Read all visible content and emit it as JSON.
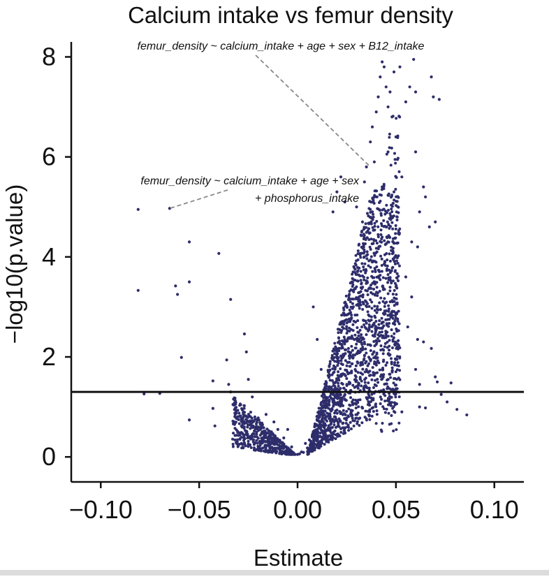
{
  "chart_data": {
    "type": "scatter",
    "title": "Calcium intake vs femur density",
    "xlabel": "Estimate",
    "ylabel": "−log10(p.value)",
    "xlim": [
      -0.115,
      0.115
    ],
    "ylim": [
      -0.5,
      8.3
    ],
    "x_ticks": [
      -0.1,
      -0.05,
      0.0,
      0.05,
      0.1
    ],
    "x_tick_labels": [
      "−0.10",
      "−0.05",
      "0.00",
      "0.05",
      "0.10"
    ],
    "y_ticks": [
      0,
      2,
      4,
      6,
      8
    ],
    "y_tick_labels": [
      "0",
      "2",
      "4",
      "6",
      "8"
    ],
    "hline": 1.3,
    "point_color": "#2e2d6b",
    "grid": false,
    "annotations": [
      {
        "text_lines": [
          "femur_density ~ calcium_intake + age + sex + B12_intake"
        ],
        "target": [
          0.037,
          5.8
        ]
      },
      {
        "text_lines": [
          "femur_density ~ calcium_intake + age + sex",
          "+ phosphorus_intake"
        ],
        "target": [
          -0.065,
          4.97
        ]
      }
    ],
    "series": [
      {
        "points": [
          [
            -0.081,
            4.95
          ],
          [
            -0.065,
            4.97
          ],
          [
            -0.081,
            3.33
          ],
          [
            -0.055,
            4.3
          ],
          [
            -0.055,
            3.5
          ],
          [
            -0.062,
            3.42
          ],
          [
            -0.061,
            3.25
          ],
          [
            -0.04,
            4.07
          ],
          [
            -0.034,
            3.15
          ],
          [
            -0.027,
            2.46
          ],
          [
            -0.059,
            1.99
          ],
          [
            -0.036,
            1.94
          ],
          [
            -0.026,
            2.1
          ],
          [
            -0.043,
            1.52
          ],
          [
            -0.043,
            0.97
          ],
          [
            -0.055,
            0.74
          ],
          [
            -0.042,
            0.62
          ],
          [
            -0.035,
            1.45
          ],
          [
            -0.034,
            1.3
          ],
          [
            -0.025,
            1.55
          ],
          [
            -0.023,
            1.2
          ],
          [
            -0.07,
            1.27
          ],
          [
            -0.078,
            1.26
          ],
          [
            0.02,
            5.3
          ],
          [
            0.018,
            4.9
          ],
          [
            0.022,
            5.6
          ],
          [
            0.024,
            5.1
          ],
          [
            0.03,
            5.0
          ],
          [
            0.034,
            5.5
          ],
          [
            0.033,
            4.7
          ],
          [
            0.035,
            5.8
          ],
          [
            0.037,
            6.3
          ],
          [
            0.038,
            6.6
          ],
          [
            0.039,
            5.9
          ],
          [
            0.04,
            6.9
          ],
          [
            0.041,
            7.2
          ],
          [
            0.042,
            7.6
          ],
          [
            0.043,
            7.9
          ],
          [
            0.044,
            7.8
          ],
          [
            0.045,
            7.4
          ],
          [
            0.046,
            7.0
          ],
          [
            0.047,
            7.3
          ],
          [
            0.049,
            7.7
          ],
          [
            0.052,
            7.8
          ],
          [
            0.055,
            7.1
          ],
          [
            0.057,
            7.4
          ],
          [
            0.06,
            7.3
          ],
          [
            0.059,
            7.95
          ],
          [
            0.048,
            6.8
          ],
          [
            0.05,
            6.4
          ],
          [
            0.046,
            6.1
          ],
          [
            0.043,
            5.4
          ],
          [
            0.049,
            5.3
          ],
          [
            0.053,
            5.6
          ],
          [
            0.06,
            6.1
          ],
          [
            0.064,
            5.4
          ],
          [
            0.065,
            5.2
          ],
          [
            0.062,
            4.9
          ],
          [
            0.068,
            7.6
          ],
          [
            0.069,
            7.2
          ],
          [
            0.072,
            7.15
          ],
          [
            0.07,
            4.7
          ],
          [
            0.067,
            4.6
          ],
          [
            0.061,
            4.2
          ],
          [
            0.058,
            4.3
          ],
          [
            0.055,
            3.6
          ],
          [
            0.058,
            3.2
          ],
          [
            0.056,
            2.6
          ],
          [
            0.061,
            2.35
          ],
          [
            0.064,
            2.3
          ],
          [
            0.068,
            2.17
          ],
          [
            0.06,
            1.75
          ],
          [
            0.062,
            1.45
          ],
          [
            0.07,
            1.6
          ],
          [
            0.071,
            1.5
          ],
          [
            0.073,
            1.25
          ],
          [
            0.076,
            1.1
          ],
          [
            0.078,
            1.48
          ],
          [
            0.081,
            0.95
          ],
          [
            0.086,
            0.84
          ],
          [
            0.062,
            1.0
          ],
          [
            0.065,
            0.98
          ],
          [
            0.053,
            0.9
          ],
          [
            0.008,
            3.0
          ],
          [
            0.01,
            2.35
          ],
          [
            0.012,
            1.75
          ],
          [
            0.014,
            0.4
          ],
          [
            -0.005,
            0.55
          ],
          [
            -0.007,
            0.38
          ],
          [
            -0.01,
            0.55
          ],
          [
            -0.012,
            0.7
          ],
          [
            -0.016,
            0.85
          ],
          [
            -0.018,
            0.62
          ],
          [
            -0.02,
            0.78
          ],
          [
            -0.022,
            0.52
          ],
          [
            -0.026,
            0.45
          ],
          [
            -0.029,
            0.82
          ],
          [
            -0.031,
            0.77
          ],
          [
            -0.032,
            0.65
          ],
          [
            0.004,
            0.27
          ],
          [
            0.006,
            0.34
          ],
          [
            -0.003,
            0.2
          ],
          [
            0.002,
            0.1
          ],
          [
            0.0,
            0.05
          ],
          [
            -0.002,
            0.08
          ],
          [
            0.001,
            0.06
          ],
          [
            0.003,
            0.09
          ],
          [
            -0.004,
            0.15
          ],
          [
            0.005,
            0.18
          ]
        ]
      }
    ]
  }
}
